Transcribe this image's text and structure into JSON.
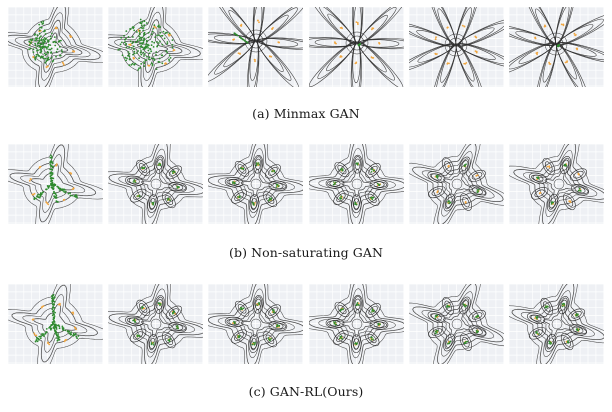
{
  "captions": {
    "minmax": "(a)  Minmax GAN",
    "nonsat": "(b)  Non-saturating GAN",
    "ours": "(c)  GAN-RL(Ours)"
  },
  "colors": {
    "panel_bg": "#eef0f4",
    "grid": "#ffffff",
    "contour": "#2b2b2b",
    "real_points": "#f0a640",
    "generated_points": "#2f8a2f"
  }
}
